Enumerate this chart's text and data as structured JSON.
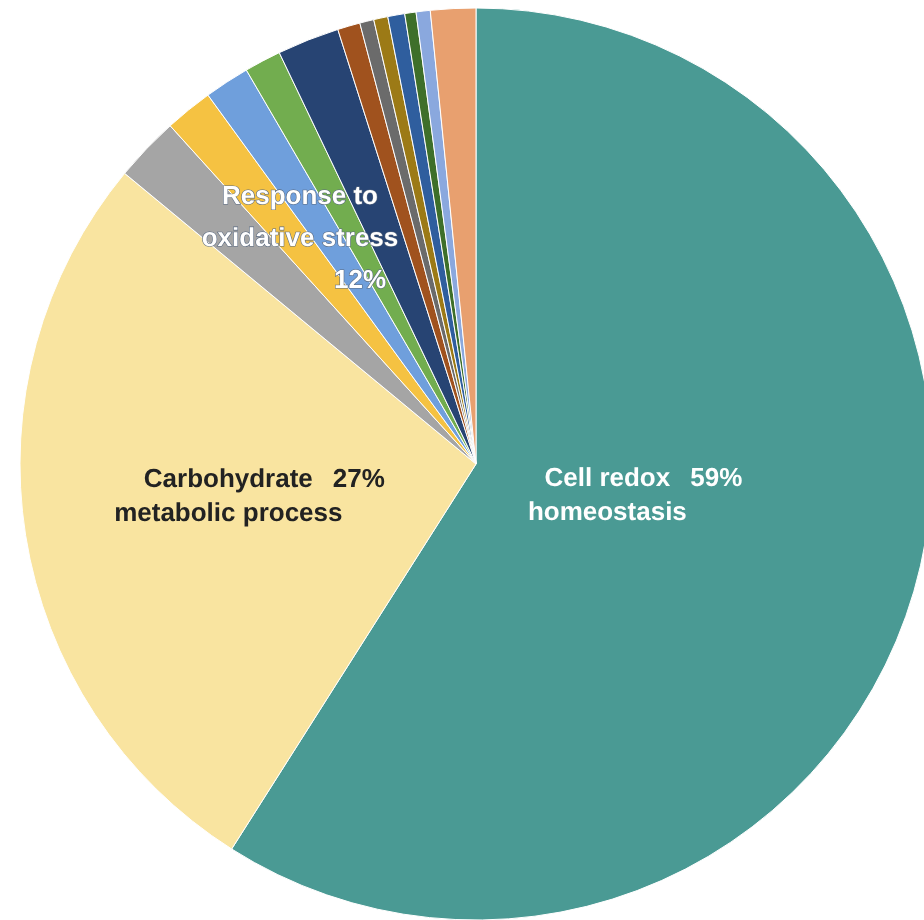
{
  "chart_data": {
    "type": "pie",
    "categories": [
      "Cell redox homeostasis",
      "Carbohydrate metabolic process",
      null,
      null,
      null,
      null,
      null,
      null,
      null,
      null,
      null,
      null,
      null,
      null
    ],
    "values": [
      59,
      27,
      2.3,
      1.7,
      1.6,
      1.3,
      2.2,
      0.8,
      0.5,
      0.5,
      0.6,
      0.4,
      0.5,
      1.6
    ],
    "value_labels": [
      "59%",
      "27%",
      null,
      null,
      null,
      null,
      null,
      null,
      null,
      null,
      null,
      null,
      null,
      null
    ],
    "colors": [
      "#4a9a94",
      "#f9e4a0",
      "#a5a5a5",
      "#f5c242",
      "#6f9fdc",
      "#72ad4f",
      "#274473",
      "#a0521e",
      "#6b6b6b",
      "#9c7a16",
      "#2f5e9e",
      "#3e6f2a",
      "#8aa8de",
      "#e8a06f"
    ],
    "annotations": [
      "Response to oxidative stress 12%"
    ],
    "legend": false
  }
}
